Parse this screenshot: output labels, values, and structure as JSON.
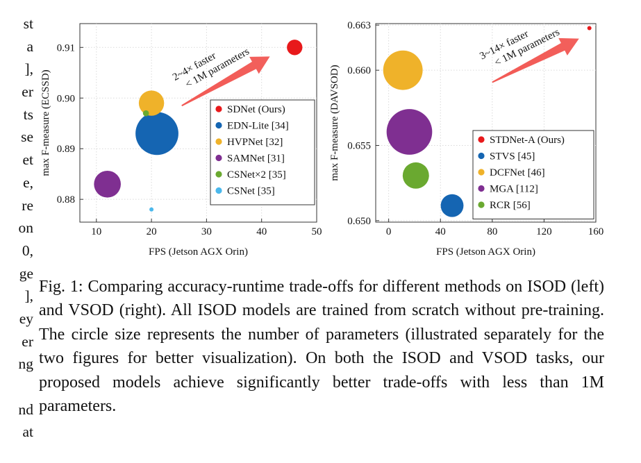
{
  "margin_left_lines": [
    "st",
    "a",
    "],",
    "er",
    "ts",
    "se",
    "et",
    "e,",
    "re",
    "on",
    "0,",
    "ge",
    "],",
    "ey",
    "er",
    "ng",
    "",
    "nd",
    "at"
  ],
  "margin_right_lines": [],
  "caption": "Fig. 1: Comparing accuracy-runtime trade-offs for different methods on ISOD (left) and VSOD (right). All ISOD models are trained from scratch without pre-training. The circle size represents the number of parameters (illustrated separately for the two figures for better visualization). On both the ISOD and VSOD tasks, our proposed models achieve significantly better trade-offs with less than 1M parameters.",
  "chart_data": [
    {
      "type": "scatter",
      "bubble": true,
      "title": "",
      "xlabel": "FPS (Jetson AGX Orin)",
      "ylabel": "max F-measure (ECSSD)",
      "xlim": [
        7,
        50
      ],
      "ylim": [
        0.8755,
        0.9147
      ],
      "xticks": [
        10,
        20,
        30,
        40,
        50
      ],
      "xtick_labels": [
        "10",
        "20",
        "30",
        "40",
        "50"
      ],
      "yticks": [
        0.88,
        0.89,
        0.9,
        0.91
      ],
      "ytick_labels": [
        "0.88",
        "0.89",
        "0.90",
        "0.91"
      ],
      "grid": true,
      "legend_position": "bottom-right",
      "annotation": {
        "line1": "2~4× faster",
        "line2": "< 1M parameters",
        "from": [
          25.5,
          0.8985
        ],
        "to": [
          41.5,
          0.9082
        ]
      },
      "series": [
        {
          "name": "SDNet (Ours)",
          "color": "#e8191b",
          "x": 46,
          "y": 0.91,
          "size": 0.6
        },
        {
          "name": "EDN-Lite [34]",
          "color": "#1565b2",
          "x": 21,
          "y": 0.893,
          "size": 4.6
        },
        {
          "name": "HVPNet [32]",
          "color": "#efb22a",
          "x": 20,
          "y": 0.899,
          "size": 1.6
        },
        {
          "name": "SAMNet [31]",
          "color": "#7f2f91",
          "x": 12,
          "y": 0.883,
          "size": 1.8
        },
        {
          "name": "CSNet×2 [35]",
          "color": "#6aa930",
          "x": 19,
          "y": 0.897,
          "size": 0.09
        },
        {
          "name": "CSNet [35]",
          "color": "#4bb8ec",
          "x": 20,
          "y": 0.878,
          "size": 0.03
        }
      ]
    },
    {
      "type": "scatter",
      "bubble": true,
      "title": "",
      "xlabel": "FPS (Jetson AGX Orin)",
      "ylabel": "max F-measure (DAVSOD)",
      "xlim": [
        -10,
        160
      ],
      "ylim": [
        0.6499,
        0.6631
      ],
      "xticks": [
        0,
        40,
        80,
        120,
        160
      ],
      "xtick_labels": [
        "0",
        "40",
        "80",
        "120",
        "160"
      ],
      "yticks": [
        0.65,
        0.655,
        0.66,
        0.663
      ],
      "ytick_labels": [
        "0.650",
        "0.655",
        "0.660",
        "0.663"
      ],
      "grid": true,
      "legend_position": "bottom-right",
      "annotation": {
        "line1": "3~14× faster",
        "line2": "< 1M parameters",
        "from": [
          80,
          0.6592
        ],
        "to": [
          147,
          0.6621
        ]
      },
      "series": [
        {
          "name": "STDNet-A (Ours)",
          "color": "#e8191b",
          "x": 155,
          "y": 0.6628,
          "size": 0.05
        },
        {
          "name": "STVS [45]",
          "color": "#1565b2",
          "x": 49,
          "y": 0.651,
          "size": 1.5
        },
        {
          "name": "DCFNet [46]",
          "color": "#efb22a",
          "x": 11,
          "y": 0.66,
          "size": 4.5
        },
        {
          "name": "MGA [112]",
          "color": "#7f2f91",
          "x": 16,
          "y": 0.6559,
          "size": 6.0
        },
        {
          "name": "RCR [56]",
          "color": "#6aa930",
          "x": 21,
          "y": 0.653,
          "size": 2.0
        }
      ]
    }
  ]
}
